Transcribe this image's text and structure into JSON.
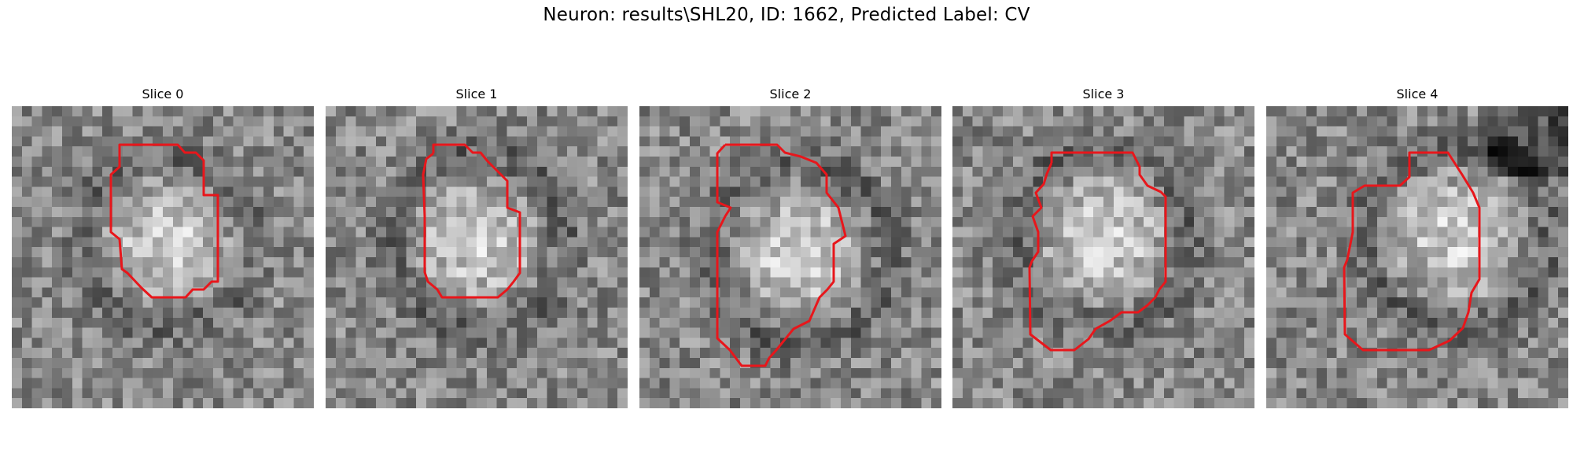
{
  "figure": {
    "title": "Neuron: results\\SHL20, ID: 1662, Predicted Label: CV"
  },
  "panels": [
    {
      "title": "Slice 0",
      "contour_color": "#e8161b"
    },
    {
      "title": "Slice 1",
      "contour_color": "#e8161b"
    },
    {
      "title": "Slice 2",
      "contour_color": "#e8161b"
    },
    {
      "title": "Slice 3",
      "contour_color": "#e8161b"
    },
    {
      "title": "Slice 4",
      "contour_color": "#e8161b"
    }
  ]
}
